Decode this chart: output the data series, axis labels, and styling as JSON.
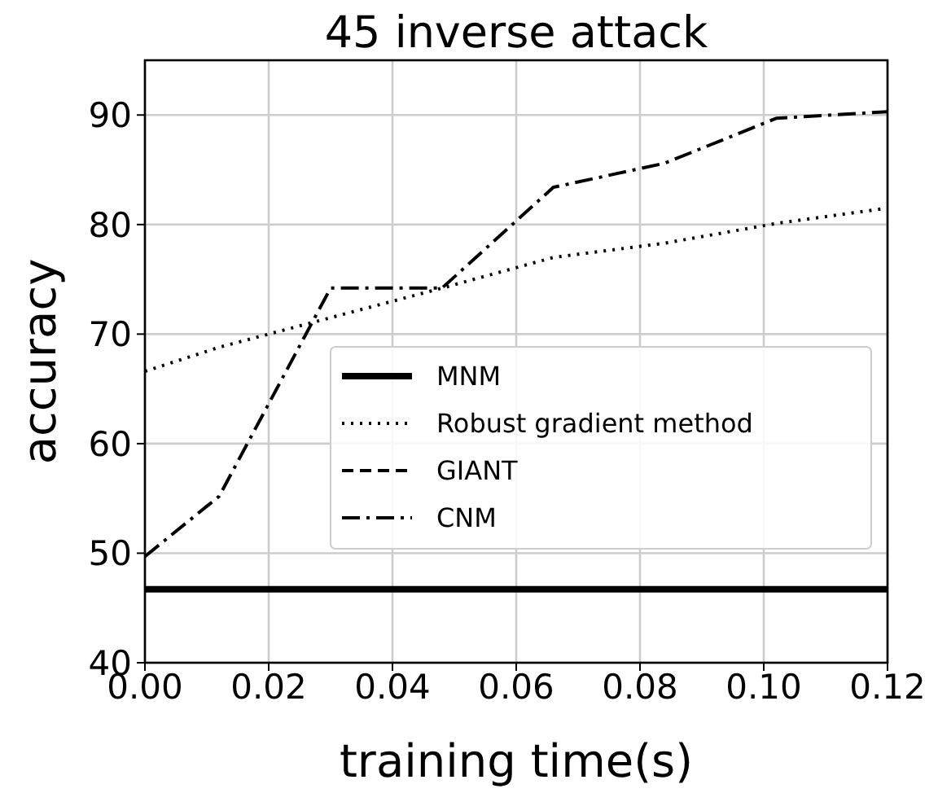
{
  "chart_data": {
    "type": "line",
    "title": "45 inverse attack",
    "xlabel": "training time(s)",
    "ylabel": "accuracy",
    "x": [
      0,
      0.012,
      0.03,
      0.048,
      0.066,
      0.084,
      0.102,
      0.12
    ],
    "series": [
      {
        "name": "MNM",
        "color": "#000000",
        "line_style": "solid",
        "values": [
          46.7,
          46.7,
          46.7,
          46.7,
          46.7,
          46.7,
          46.7,
          46.7
        ]
      },
      {
        "name": "Robust gradient method",
        "color": "#000000",
        "line_style": "dotted",
        "values": [
          66.6,
          68.8,
          71.5,
          74.2,
          77.0,
          78.3,
          80.1,
          81.5
        ]
      },
      {
        "name": "GIANT",
        "color": "#000000",
        "line_style": "dashed",
        "values": [
          null,
          null,
          null,
          null,
          null,
          null,
          null,
          null
        ]
      },
      {
        "name": "CNM",
        "color": "#000000",
        "line_style": "dashdot",
        "values": [
          49.7,
          55.2,
          74.2,
          74.2,
          83.4,
          85.6,
          89.7,
          90.3
        ]
      }
    ],
    "xlim": [
      0,
      0.12
    ],
    "xticks": [
      {
        "value": 0,
        "label": "0.00"
      },
      {
        "value": 0.02,
        "label": "0.02"
      },
      {
        "value": 0.04,
        "label": "0.04"
      },
      {
        "value": 0.06,
        "label": "0.06"
      },
      {
        "value": 0.08,
        "label": "0.08"
      },
      {
        "value": 0.1,
        "label": "0.10"
      },
      {
        "value": 0.12,
        "label": "0.12"
      }
    ],
    "ylim": [
      40,
      95
    ],
    "yticks": [
      40,
      50,
      60,
      70,
      80,
      90
    ],
    "grid": true,
    "legend": "right"
  }
}
